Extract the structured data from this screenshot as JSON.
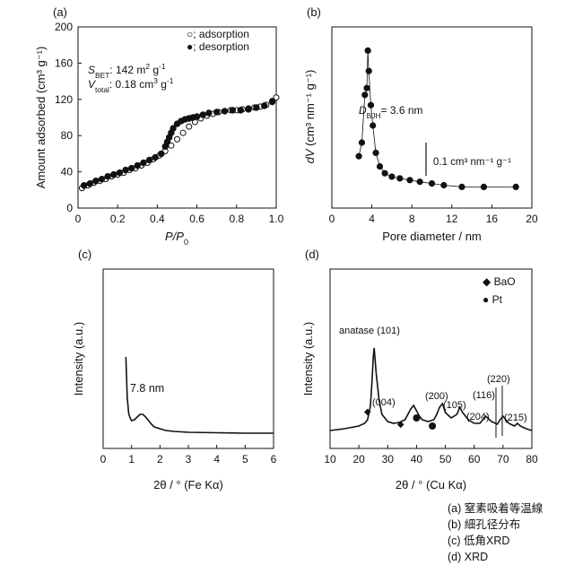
{
  "chart_data": [
    {
      "panel": "(a)",
      "type": "scatter",
      "xlabel_main": "P/P",
      "xlabel_sub": "0",
      "ylabel": "Amount adsorbed (cm³ g⁻¹)",
      "xlim": [
        0,
        1.0
      ],
      "ylim": [
        0,
        200
      ],
      "xticks": [
        "0",
        "0.2",
        "0.4",
        "0.6",
        "0.8",
        "1.0"
      ],
      "yticks": [
        "0",
        "40",
        "80",
        "120",
        "160",
        "200"
      ],
      "legend": [
        {
          "symbol": "○",
          "text": "; adsorption"
        },
        {
          "symbol": "●",
          "text": "; desorption"
        }
      ],
      "annotations": [
        {
          "main": "S",
          "sub": "BET",
          "text": ": 142 m",
          "sup": "2",
          "tail": " g",
          "sup2": "-1"
        },
        {
          "main": "V",
          "sub": "total",
          "text": ": 0.18 cm",
          "sup": "3",
          "tail": " g",
          "sup2": "-1"
        }
      ],
      "series": [
        {
          "name": "adsorption",
          "marker": "open",
          "x": [
            0.02,
            0.05,
            0.08,
            0.11,
            0.14,
            0.17,
            0.2,
            0.23,
            0.26,
            0.29,
            0.32,
            0.35,
            0.38,
            0.41,
            0.44,
            0.47,
            0.5,
            0.53,
            0.56,
            0.59,
            0.62,
            0.65,
            0.68,
            0.71,
            0.74,
            0.77,
            0.8,
            0.83,
            0.86,
            0.89,
            0.92,
            0.95,
            0.98,
            1.0
          ],
          "y": [
            22,
            25,
            28,
            30,
            32,
            35,
            37,
            39,
            42,
            44,
            47,
            50,
            54,
            58,
            63,
            69,
            76,
            83,
            90,
            95,
            99,
            102,
            104,
            106,
            107,
            108,
            108,
            109,
            110,
            111,
            112,
            114,
            117,
            122
          ]
        },
        {
          "name": "desorption",
          "marker": "filled",
          "x": [
            0.03,
            0.06,
            0.09,
            0.12,
            0.15,
            0.18,
            0.21,
            0.24,
            0.27,
            0.3,
            0.33,
            0.36,
            0.39,
            0.42,
            0.44,
            0.45,
            0.46,
            0.47,
            0.48,
            0.5,
            0.52,
            0.54,
            0.56,
            0.58,
            0.6,
            0.63,
            0.66,
            0.7,
            0.74,
            0.78,
            0.82,
            0.86,
            0.9,
            0.94,
            0.98
          ],
          "y": [
            25,
            27,
            30,
            32,
            35,
            37,
            39,
            42,
            44,
            47,
            50,
            53,
            56,
            60,
            68,
            73,
            78,
            83,
            88,
            93,
            96,
            98,
            99,
            100,
            101,
            103,
            105,
            106,
            107,
            108,
            108,
            109,
            111,
            113,
            118
          ]
        }
      ]
    },
    {
      "panel": "(b)",
      "type": "scatter",
      "xlabel": "Pore diameter / nm",
      "ylabel_main": "dV",
      "ylabel_text": "(cm³ nm⁻¹ g⁻¹)",
      "xlim": [
        0,
        20
      ],
      "xticks": [
        "0",
        "4",
        "8",
        "12",
        "16",
        "20"
      ],
      "annotation": {
        "main": "D",
        "sub": "BJH",
        "text": "= 3.6 nm"
      },
      "scale_bar": "0.1  cm³ nm⁻¹ g⁻¹",
      "series": [
        {
          "name": "BJH",
          "x": [
            2.7,
            3.0,
            3.3,
            3.5,
            3.6,
            3.7,
            3.9,
            4.1,
            4.4,
            4.8,
            5.3,
            6.0,
            6.8,
            7.8,
            8.8,
            10,
            11.2,
            13,
            15.2,
            18.4
          ],
          "y": [
            0.11,
            0.15,
            0.29,
            0.31,
            0.42,
            0.36,
            0.26,
            0.2,
            0.12,
            0.08,
            0.06,
            0.05,
            0.045,
            0.04,
            0.035,
            0.03,
            0.025,
            0.02,
            0.02,
            0.02
          ]
        }
      ]
    },
    {
      "panel": "(c)",
      "type": "line",
      "xlabel": "2θ / ° (Fe Kα)",
      "ylabel": "Intensity (a.u.)",
      "xlim": [
        0,
        6
      ],
      "xticks": [
        "0",
        "1",
        "2",
        "3",
        "4",
        "5",
        "6"
      ],
      "annotation": "7.8 nm",
      "series": [
        {
          "name": "low-angle XRD",
          "x": [
            0.8,
            0.85,
            0.9,
            0.95,
            1.0,
            1.1,
            1.2,
            1.3,
            1.4,
            1.5,
            1.6,
            1.7,
            1.8,
            2.0,
            2.2,
            2.5,
            3,
            4,
            5,
            6
          ],
          "y": [
            0.88,
            0.42,
            0.25,
            0.2,
            0.17,
            0.18,
            0.21,
            0.24,
            0.24,
            0.21,
            0.17,
            0.13,
            0.1,
            0.08,
            0.06,
            0.05,
            0.04,
            0.035,
            0.03,
            0.03
          ]
        }
      ]
    },
    {
      "panel": "(d)",
      "type": "line",
      "xlabel": "2θ / ° (Cu Kα)",
      "ylabel": "Intensity (a.u.)",
      "xlim": [
        10,
        80
      ],
      "xticks": [
        "10",
        "20",
        "30",
        "40",
        "50",
        "60",
        "70",
        "80"
      ],
      "legend": [
        {
          "symbol": "◆",
          "text": "BaO"
        },
        {
          "symbol": "●",
          "text": "Pt"
        }
      ],
      "peak_labels": [
        "anatase (101)",
        "(004)",
        "(200)",
        "(105)",
        "(204)",
        "(116)",
        "(220)",
        "(215)"
      ],
      "series": [
        {
          "name": "XRD",
          "x": [
            10,
            15,
            20,
            22,
            23,
            24,
            24.5,
            25,
            25.3,
            26,
            27,
            28,
            30,
            32,
            34,
            36,
            37,
            38,
            39,
            40,
            41,
            42,
            44,
            46,
            47,
            48,
            49,
            50,
            52,
            54,
            55,
            56,
            58,
            60,
            62,
            63,
            64,
            66,
            68,
            69,
            70,
            71,
            72,
            74,
            75,
            76,
            78,
            80
          ],
          "y": [
            0.08,
            0.1,
            0.13,
            0.16,
            0.2,
            0.35,
            0.6,
            0.9,
            1.0,
            0.72,
            0.42,
            0.26,
            0.18,
            0.16,
            0.17,
            0.2,
            0.26,
            0.32,
            0.36,
            0.3,
            0.24,
            0.2,
            0.18,
            0.2,
            0.26,
            0.34,
            0.38,
            0.28,
            0.22,
            0.26,
            0.34,
            0.28,
            0.2,
            0.16,
            0.16,
            0.2,
            0.24,
            0.18,
            0.15,
            0.2,
            0.24,
            0.2,
            0.16,
            0.13,
            0.16,
            0.13,
            0.1,
            0.08
          ]
        }
      ]
    }
  ],
  "captions": [
    "(a) 窒素吸着等温線",
    "(b) 細孔径分布",
    "(c) 低角XRD",
    "(d) XRD"
  ]
}
